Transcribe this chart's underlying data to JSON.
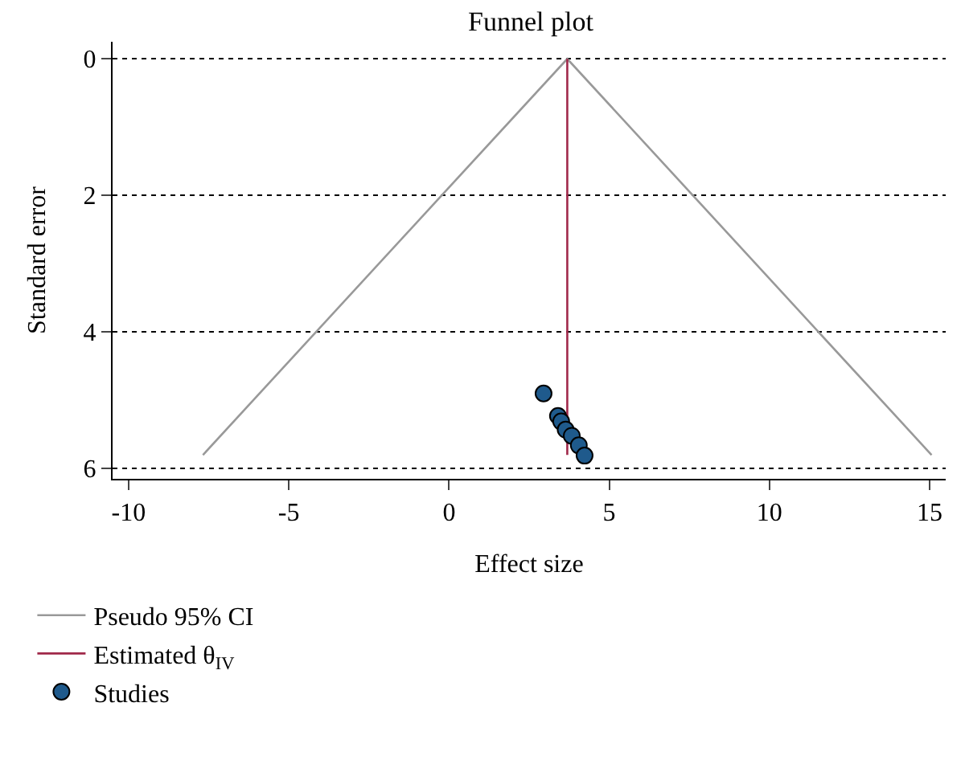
{
  "chart_data": {
    "type": "line",
    "title": "Funnel plot",
    "xlabel": "Effect size",
    "ylabel": "Standard error",
    "xlim": [
      -10.5,
      15.5
    ],
    "xticks": [
      -10,
      -5,
      0,
      5,
      10,
      15
    ],
    "ylim": [
      6.15,
      -0.25
    ],
    "yticks": [
      0,
      2,
      4,
      6
    ],
    "grid": "y",
    "legend": "bottom left",
    "series": [
      {
        "name": "Pseudo 95% CI",
        "color": "#999999",
        "x": [
          -7.68,
          3.69,
          15.06
        ],
        "values": [
          5.8,
          0,
          5.8
        ]
      },
      {
        "name": "Estimated θ$_{IV}$",
        "color": "#a0284a",
        "x": [
          3.69,
          3.69
        ],
        "values": [
          0,
          5.8
        ]
      },
      {
        "name": "Studies",
        "type": "scatter",
        "marker": "circle",
        "color": "#1f5a8c",
        "x": [
          2.95,
          3.4,
          3.5,
          3.64,
          3.83,
          4.05,
          4.23
        ],
        "values": [
          4.9,
          5.23,
          5.31,
          5.43,
          5.52,
          5.66,
          5.81
        ]
      }
    ]
  }
}
